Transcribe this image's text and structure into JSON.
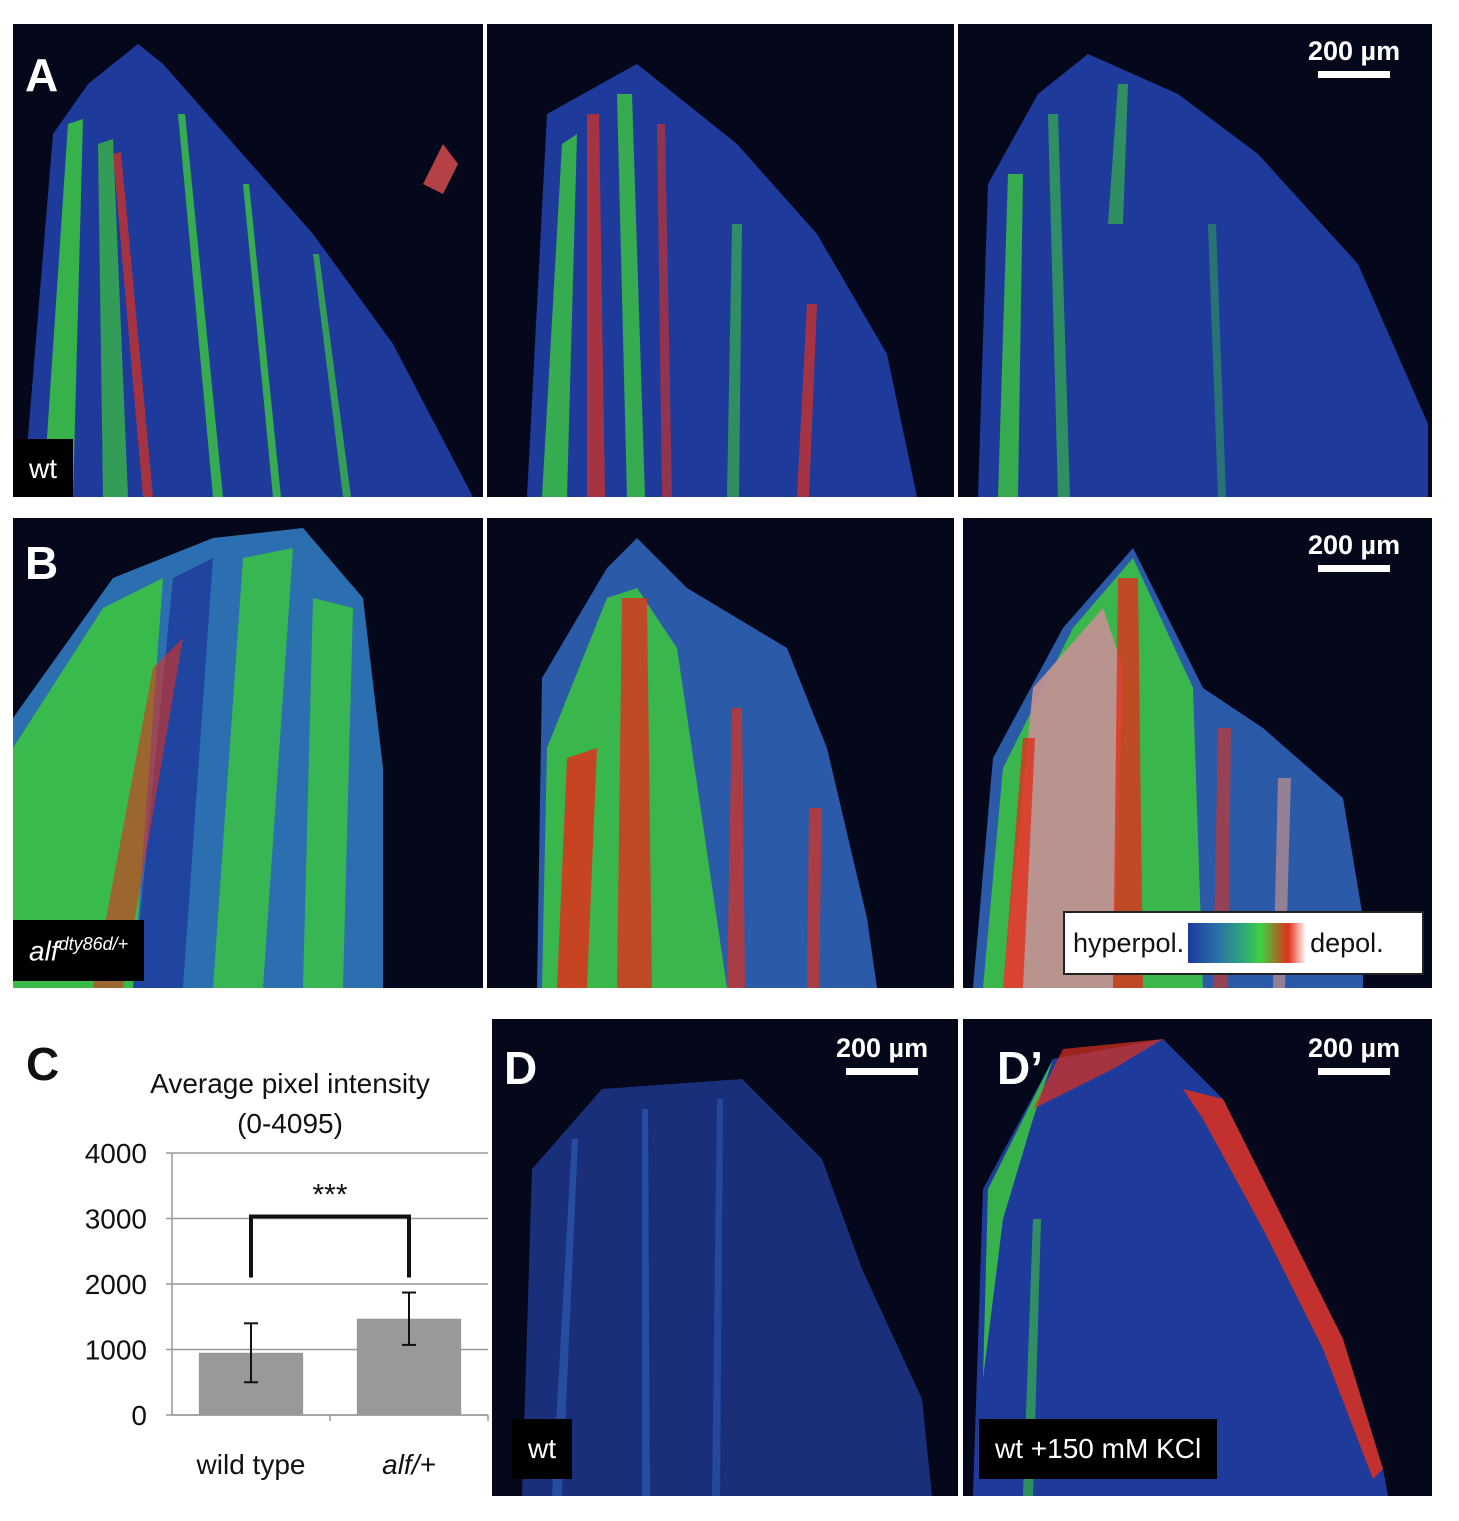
{
  "panels": {
    "A": {
      "letter": "A",
      "label": "wt",
      "scalebar": "200 µm"
    },
    "B": {
      "letter": "B",
      "label": "alf",
      "label_sup": "dty86d/+",
      "scalebar": "200 µm"
    },
    "C": {
      "letter": "C"
    },
    "D": {
      "letter": "D",
      "label": "wt",
      "scalebar": "200 µm"
    },
    "Dprime": {
      "letter": "D’",
      "label": "wt +150 mM KCl",
      "scalebar": "200 µm"
    }
  },
  "legend": {
    "left": "hyperpol.",
    "right": "depol."
  },
  "colors": {
    "background": "#05081a",
    "tissue_blue": "#1e3b9c",
    "green": "#3cc83c",
    "red": "#e0301c",
    "bar": "#999999"
  },
  "chart_data": {
    "type": "bar",
    "title": "Average pixel intensity",
    "subtitle": "(0-4095)",
    "categories": [
      "wild type",
      "alf/+"
    ],
    "values": [
      950,
      1470
    ],
    "errors": [
      450,
      400
    ],
    "ylim": [
      0,
      4000
    ],
    "yticks": [
      "4000",
      "3000",
      "2000",
      "1000",
      "0"
    ],
    "significance": "***",
    "grid": true
  }
}
